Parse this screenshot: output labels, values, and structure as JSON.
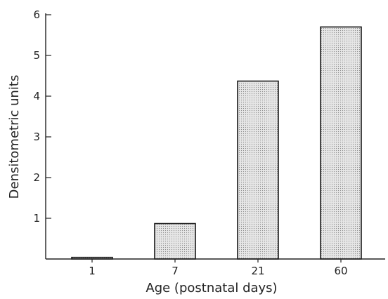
{
  "chart_data": {
    "type": "bar",
    "categories": [
      "1",
      "7",
      "21",
      "60"
    ],
    "values": [
      0.04,
      0.87,
      4.37,
      5.7
    ],
    "xlabel": "Age (postnatal days)",
    "ylabel": "Densitometric units",
    "ylim": [
      0,
      6
    ],
    "yticks": [
      "1",
      "2",
      "3",
      "4",
      "5",
      "6"
    ],
    "grid": false,
    "bar_pattern": "stippled",
    "colors": {
      "axis": "#222222",
      "bar_fill": "#e6e6e6",
      "bar_dots": "#8a8a8a",
      "bar_stroke": "#1a1a1a"
    }
  }
}
